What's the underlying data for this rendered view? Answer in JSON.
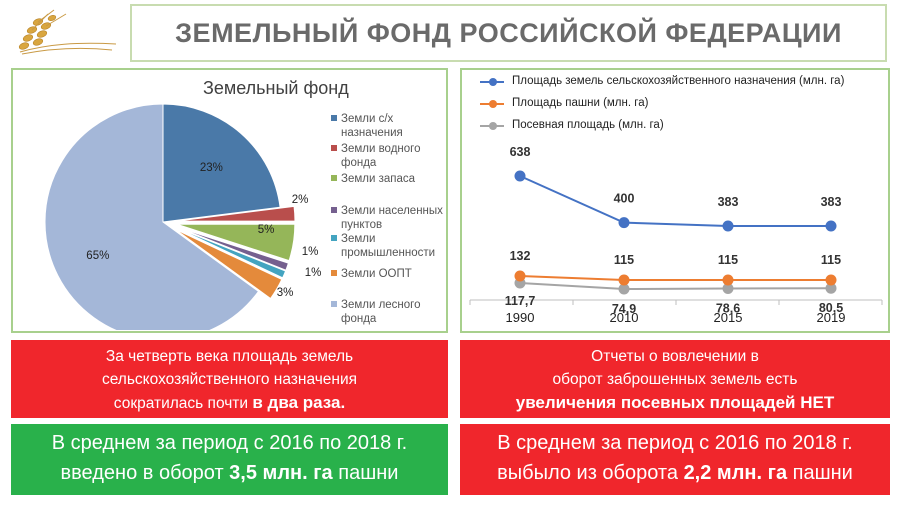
{
  "title": "ЗЕМЕЛЬНЫЙ ФОНД РОССИЙСКОЙ ФЕДЕРАЦИИ",
  "colors": {
    "title_border": "#c8dcb0",
    "panel_border": "#a8d08d",
    "red_box": "#f0262c",
    "green_box": "#29b14b"
  },
  "chart_data": [
    {
      "type": "pie",
      "title": "Земельный фонд",
      "legend_position": "right",
      "slices": [
        {
          "label": "Земли с/х назначения",
          "value": 23,
          "display": "23%",
          "color": "#4a79a8",
          "legend_lines": [
            "Земли с/х",
            "назначения"
          ]
        },
        {
          "label": "Земли водного фонда",
          "value": 2,
          "display": "2%",
          "color": "#b94e4c",
          "legend_lines": [
            "Земли водного",
            "фонда"
          ]
        },
        {
          "label": "Земли запаса",
          "value": 5,
          "display": "5%",
          "color": "#95b659",
          "legend_lines": [
            "Земли запаса"
          ]
        },
        {
          "label": "Земли населенных пунктов",
          "value": 1,
          "display": "1%",
          "color": "#75608f",
          "legend_lines": [
            "Земли населенных",
            "пунктов"
          ]
        },
        {
          "label": "Земли промышленности",
          "value": 1,
          "display": "1%",
          "color": "#44a4c0",
          "legend_lines": [
            "Земли",
            "промышленности"
          ]
        },
        {
          "label": "Земли ООПТ",
          "value": 3,
          "display": "3%",
          "color": "#e48a3b",
          "legend_lines": [
            "Земли ООПТ"
          ]
        },
        {
          "label": "Земли лесного фонда",
          "value": 65,
          "display": "65%",
          "color": "#a4b7d8",
          "legend_lines": [
            "Земли лесного",
            "фонда"
          ]
        }
      ]
    },
    {
      "type": "line",
      "categories": [
        "1990",
        "2010",
        "2015",
        "2019"
      ],
      "legend_position": "top",
      "grid": false,
      "series": [
        {
          "name": "Площадь земель сельскохозяйственного назначения (млн. га)",
          "color": "#4472c4",
          "values": [
            638,
            400,
            383,
            383
          ],
          "labels": [
            "638",
            "400",
            "383",
            "383"
          ]
        },
        {
          "name": "Площадь пашни (млн. га)",
          "color": "#ed7d31",
          "values": [
            132,
            115,
            115,
            115
          ],
          "labels": [
            "132",
            "115",
            "115",
            "115"
          ]
        },
        {
          "name": "Посевная площадь (млн. га)",
          "color": "#a5a5a5",
          "values": [
            117.7,
            74.9,
            78.6,
            80.5
          ],
          "labels": [
            "117,7",
            "74,9",
            "78,6",
            "80,5"
          ]
        }
      ]
    }
  ],
  "boxes": {
    "left_top": {
      "line1": "За четверть века площадь земель",
      "line2": "сельскохозяйственного назначения",
      "line3_plain": "сократилась почти ",
      "line3_bold": "в два раза."
    },
    "right_top": {
      "line1": "Отчеты о вовлечении в",
      "line2": "оборот заброшенных земель есть",
      "line3_bold": "увеличения посевных площадей НЕТ"
    },
    "left_bottom": {
      "line1": "В среднем за период с 2016 по 2018 г.",
      "line2_plain": "введено в оборот ",
      "line2_bold": "3,5 млн. га",
      "line2_end": " пашни"
    },
    "right_bottom": {
      "line1": "В среднем за период с 2016 по 2018 г.",
      "line2_plain": "выбыло из оборота ",
      "line2_bold": "2,2 млн. га",
      "line2_end": " пашни"
    }
  }
}
